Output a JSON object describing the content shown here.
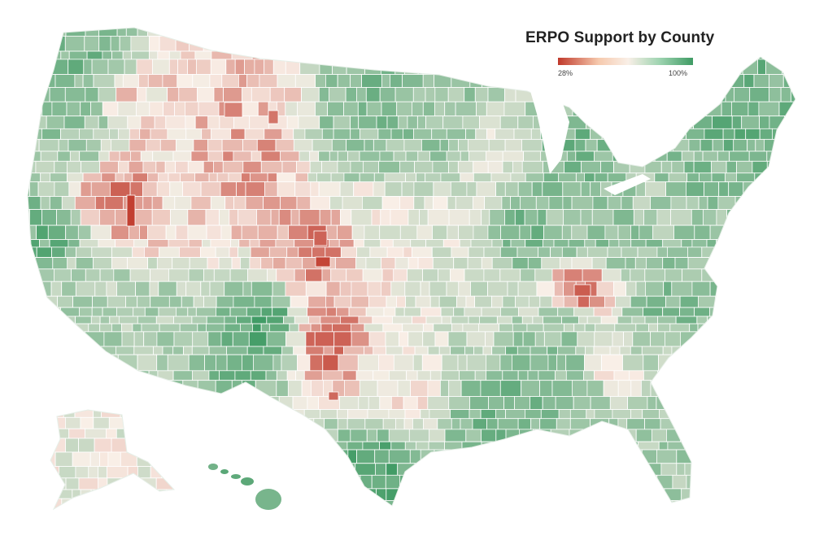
{
  "legend": {
    "title": "ERPO Support by County",
    "min_label": "28%",
    "max_label": "100%",
    "min_value": 28,
    "max_value": 100
  },
  "colors": {
    "low": "#c0392b",
    "mid": "#f9efe7",
    "high": "#3f9b64",
    "background": "#ffffff",
    "boundary": "#ffffff"
  },
  "map_data": {
    "type": "choropleth",
    "geography": "US counties",
    "metric": "ERPO support (%)",
    "regional_support_pct": {
      "washington": 86,
      "oregon": 80,
      "california_coast": 88,
      "california_inland": 74,
      "idaho": 55,
      "montana": 50,
      "wyoming": 47,
      "nevada_central": 42,
      "utah": 56,
      "arizona": 74,
      "colorado_east": 42,
      "new_mexico": 92,
      "texas_south": 94,
      "texas_panhandle": 40,
      "texas_central": 57,
      "oklahoma": 62,
      "kansas": 60,
      "nebraska": 63,
      "north_dakota": 84,
      "south_dakota": 78,
      "minnesota": 82,
      "iowa": 64,
      "missouri": 66,
      "arkansas": 72,
      "louisiana": 86,
      "mississippi": 88,
      "alabama": 80,
      "georgia": 58,
      "florida": 76,
      "south_carolina": 72,
      "north_carolina": 84,
      "virginia": 80,
      "kentucky_east": 42,
      "tennessee": 78,
      "illinois": 86,
      "indiana": 80,
      "ohio": 82,
      "michigan": 86,
      "wisconsin": 64,
      "pennsylvania": 76,
      "new_york": 82,
      "new_england": 88,
      "alaska": 62,
      "hawaii": 90
    }
  }
}
